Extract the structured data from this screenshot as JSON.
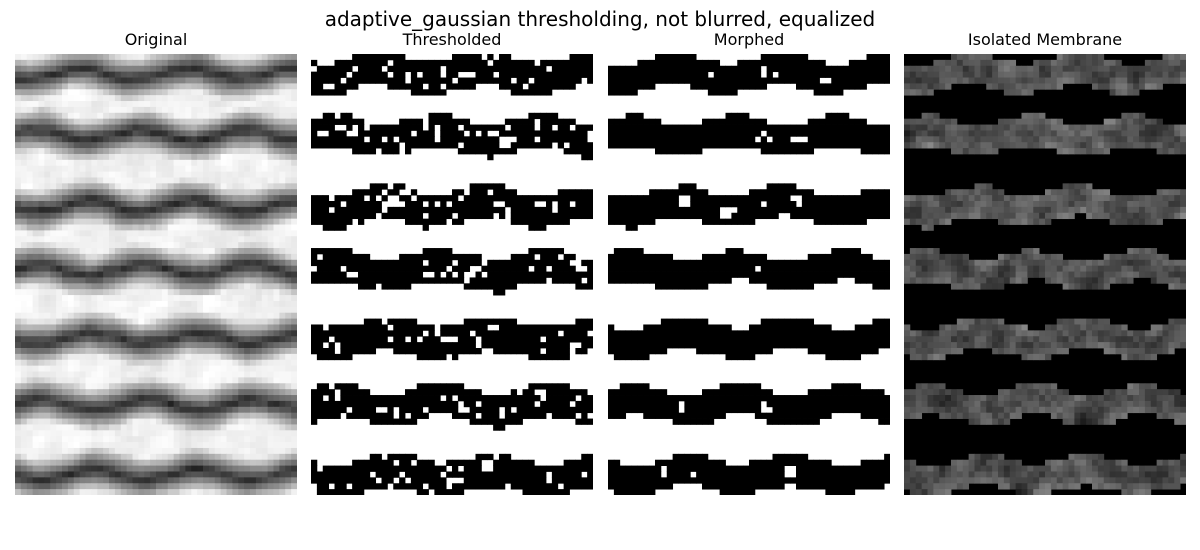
{
  "suptitle": "adaptive_gaussian thresholding, not blurred, equalized",
  "panels": [
    {
      "title": "Original"
    },
    {
      "title": "Thresholded"
    },
    {
      "title": "Morphed"
    },
    {
      "title": "Isolated Membrane"
    }
  ],
  "colors": {
    "background": "#ffffff",
    "foreground": "#000000"
  }
}
